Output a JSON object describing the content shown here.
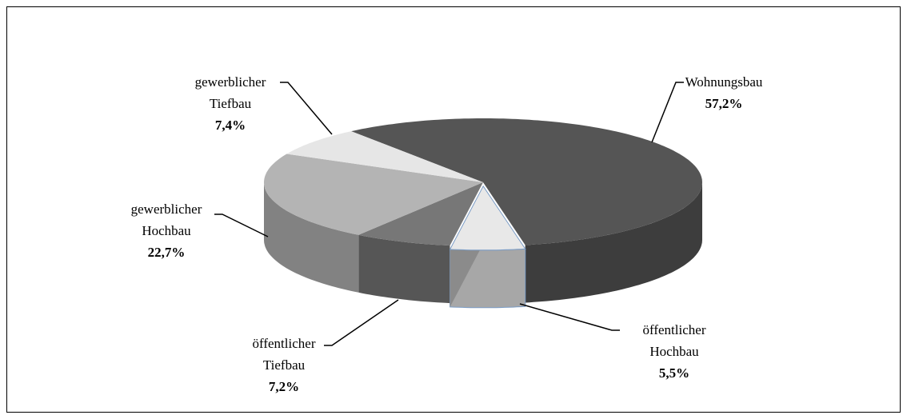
{
  "chart_data": {
    "type": "pie3d",
    "categories": [
      "Wohnungsbau",
      "öffentlicher Hochbau",
      "öffentlicher Tiefbau",
      "gewerblicher Hochbau",
      "gewerblicher Tiefbau"
    ],
    "values": [
      57.2,
      5.5,
      7.2,
      22.7,
      7.4
    ],
    "value_labels": [
      "57,2%",
      "5,5%",
      "7,2%",
      "22,7%",
      "7,4%"
    ],
    "colors": [
      "#555555",
      "#e8e8e8",
      "#777777",
      "#b4b4b4",
      "#e6e6e6"
    ]
  }
}
